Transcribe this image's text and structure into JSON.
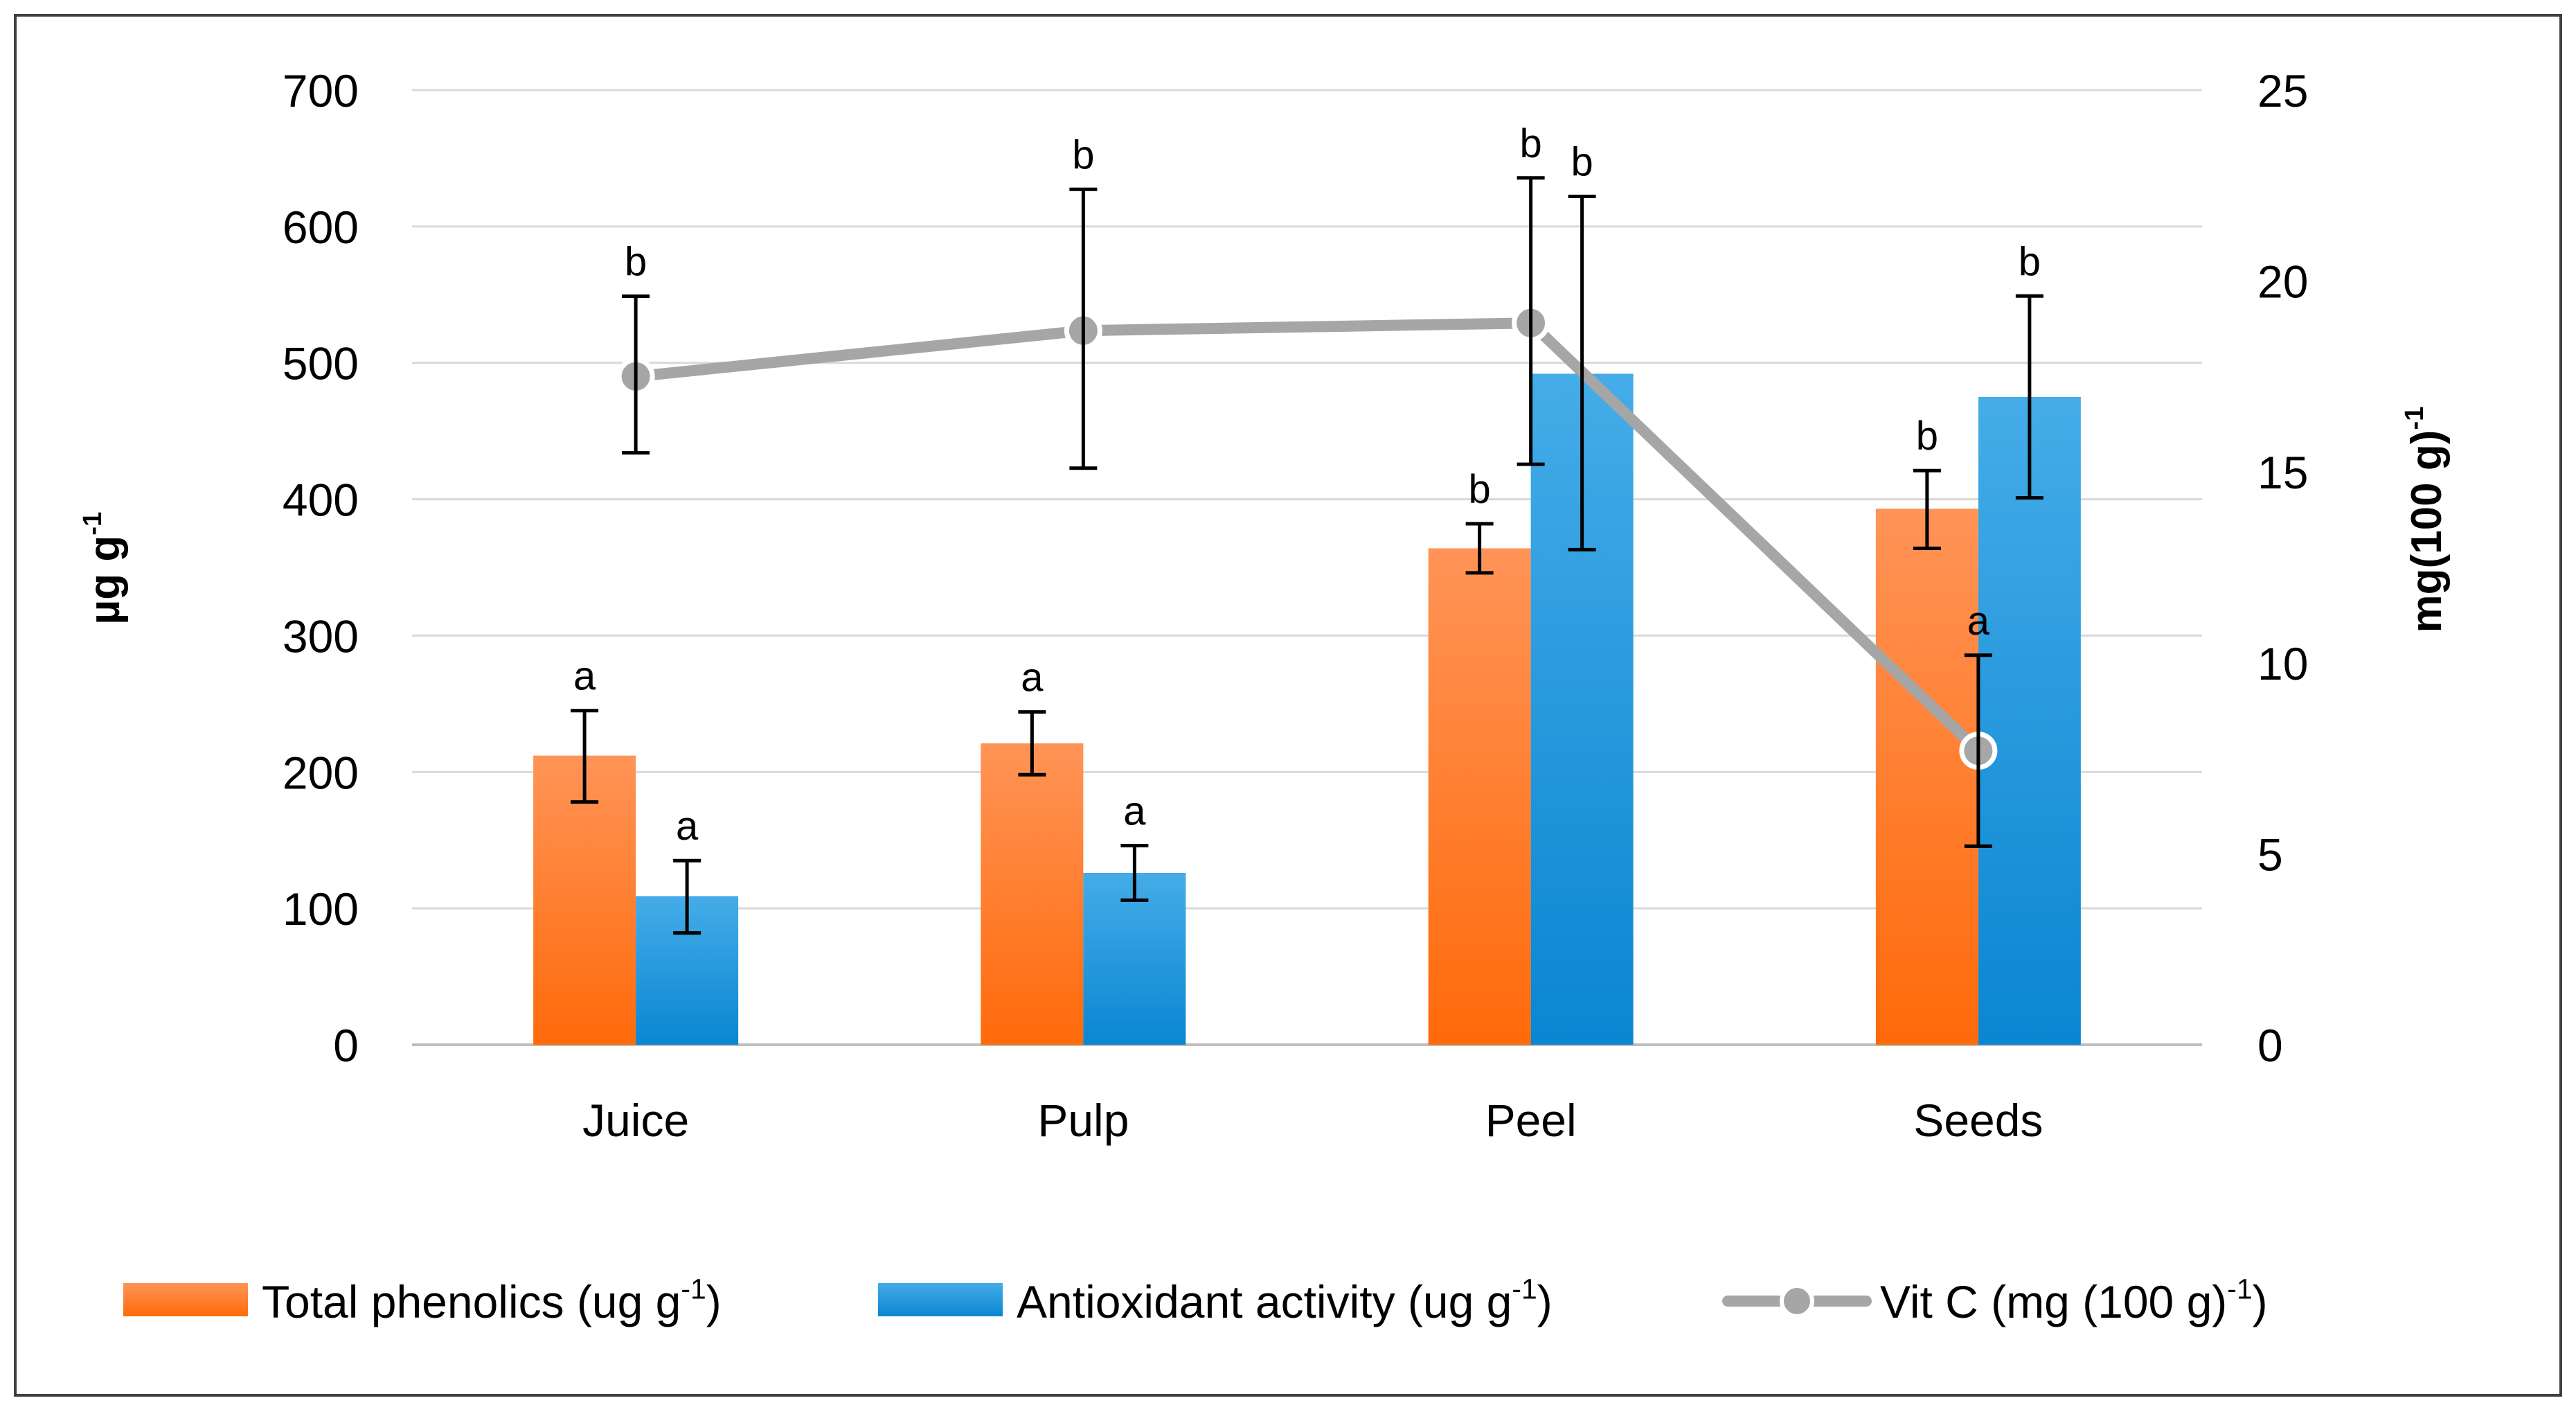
{
  "chart_data": {
    "type": "bar",
    "categories": [
      "Juice",
      "Pulp",
      "Peel",
      "Seeds"
    ],
    "ylabel_left": {
      "main": "µg g",
      "sup": "-1"
    },
    "ylabel_right": {
      "main": "mg(100 g)",
      "sup": "-1"
    },
    "ylim_left": [
      0,
      700
    ],
    "yticks_left": [
      0,
      100,
      200,
      300,
      400,
      500,
      600,
      700
    ],
    "ylim_right": [
      0,
      25
    ],
    "yticks_right": [
      0,
      5,
      10,
      15,
      20,
      25
    ],
    "grid": true,
    "legend_position": "bottom",
    "series": [
      {
        "name": "Total phenolics",
        "legend_label": {
          "main": "Total phenolics (ug  g",
          "sup": "-1",
          "close": ")"
        },
        "kind": "bar",
        "axis": "left",
        "color": "#ff7a26",
        "values": [
          212,
          221,
          364,
          393
        ],
        "err_low": [
          178,
          198,
          346,
          364
        ],
        "err_high": [
          245,
          244,
          382,
          421
        ],
        "letters": [
          "a",
          "a",
          "b",
          "b"
        ]
      },
      {
        "name": "Antioxidant activity",
        "legend_label": {
          "main": "Antioxidant activity (ug  g",
          "sup": "-1",
          "close": ")"
        },
        "kind": "bar",
        "axis": "left",
        "color": "#1e9ae0",
        "values": [
          109,
          126,
          492,
          475
        ],
        "err_low": [
          82,
          106,
          363,
          401
        ],
        "err_high": [
          135,
          146,
          622,
          549
        ],
        "letters": [
          "a",
          "a",
          "b",
          "b"
        ]
      },
      {
        "name": "Vit C",
        "legend_label": {
          "main": "Vit C (mg (100 g)",
          "sup": "-1",
          "close": ")"
        },
        "kind": "line",
        "axis": "right",
        "color": "#a6a6a6",
        "values": [
          17.5,
          18.7,
          18.9,
          7.7
        ],
        "err_low": [
          15.5,
          15.1,
          15.2,
          5.2
        ],
        "err_high": [
          19.6,
          22.4,
          22.7,
          10.2
        ],
        "letters": [
          "b",
          "b",
          "b",
          "a"
        ]
      }
    ]
  }
}
